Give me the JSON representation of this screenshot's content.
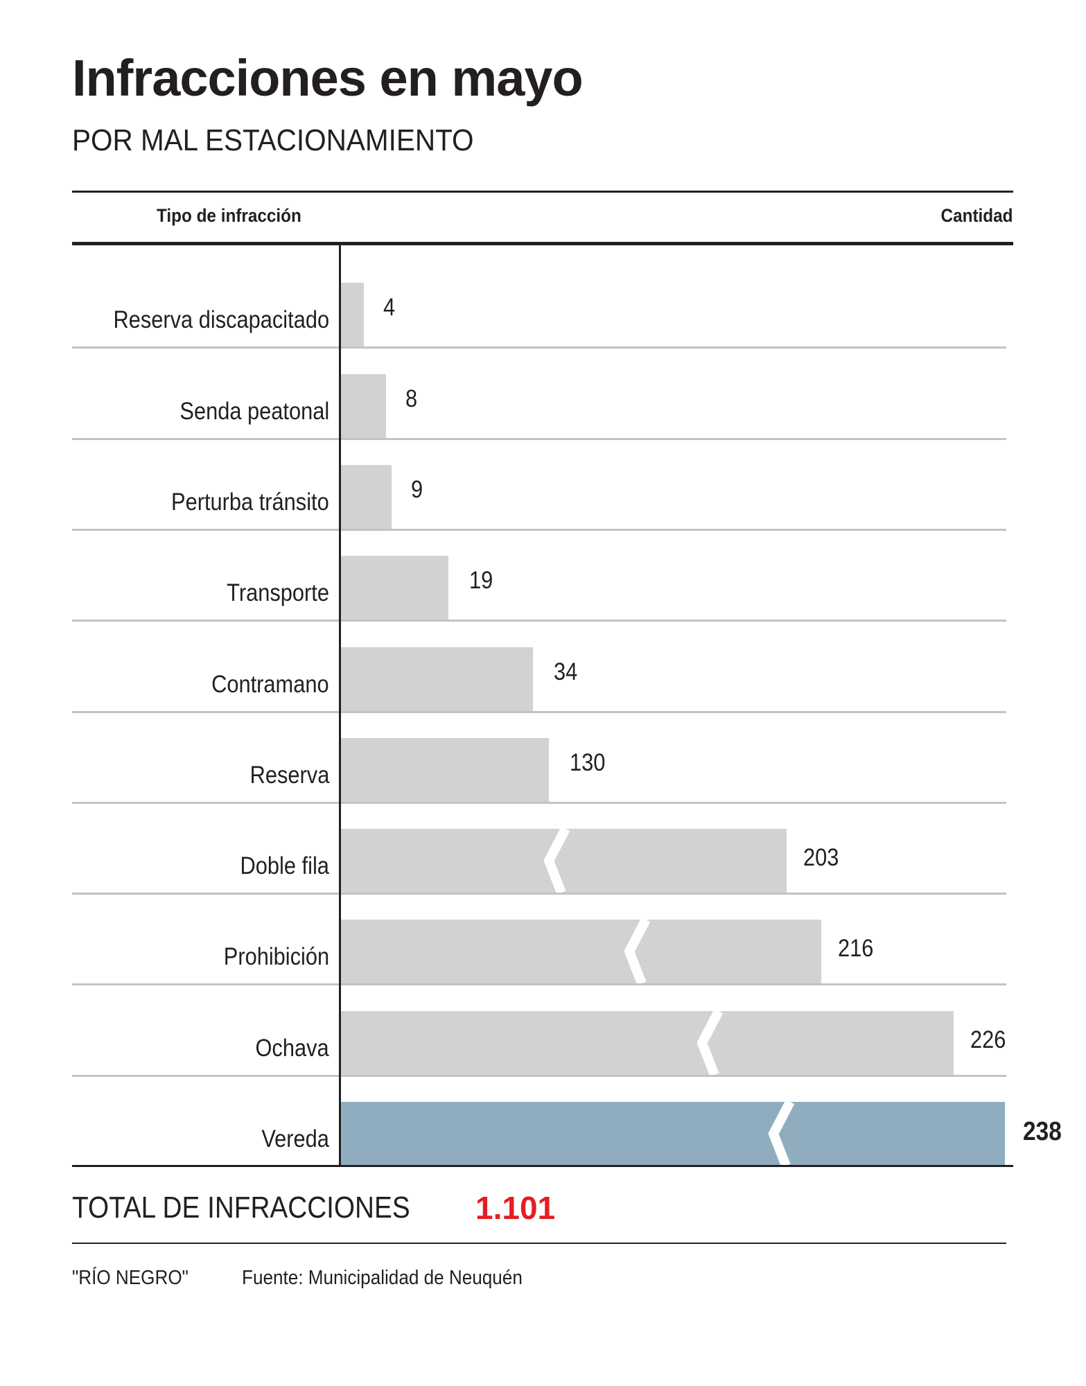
{
  "chart_data": {
    "type": "bar",
    "orientation": "horizontal",
    "title": "Infracciones en mayo",
    "subtitle": "POR MAL ESTACIONAMIENTO",
    "xlabel": "Cantidad",
    "ylabel": "Tipo de infracción",
    "categories": [
      "Reserva discapacitado",
      "Senda peatonal",
      "Perturba tránsito",
      "Transporte",
      "Contramano",
      "Reserva",
      "Doble fila",
      "Prohibición",
      "Ochava",
      "Vereda"
    ],
    "values": [
      4,
      8,
      9,
      19,
      34,
      130,
      203,
      216,
      226,
      238
    ],
    "broken_axis_bars": [
      false,
      false,
      false,
      false,
      false,
      false,
      true,
      true,
      true,
      true
    ],
    "highlight_index": 9,
    "colors": {
      "bar": "#d1d2d4",
      "highlight": "#8fadbf",
      "total": "#e31e24"
    }
  },
  "total": {
    "label": "TOTAL DE INFRACCIONES",
    "value": "1.101"
  },
  "footer": {
    "credit": "\"RÍO NEGRO\"",
    "source": "Fuente: Municipalidad de Neuquén"
  }
}
